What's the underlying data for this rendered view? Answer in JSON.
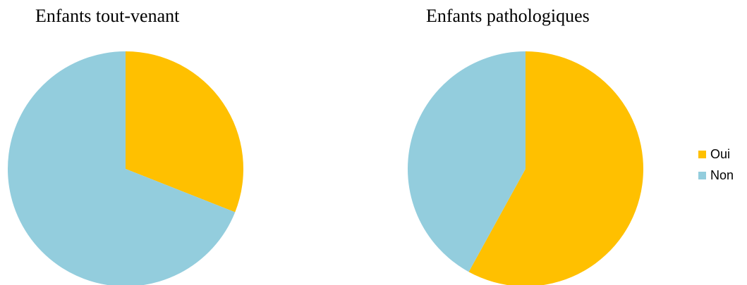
{
  "chart_data": [
    {
      "type": "pie",
      "title": "Enfants tout-venant",
      "categories": [
        "Oui",
        "Non"
      ],
      "values": [
        31,
        69
      ],
      "colors": [
        "#ffc000",
        "#93cddd"
      ]
    },
    {
      "type": "pie",
      "title": "Enfants pathologiques",
      "categories": [
        "Oui",
        "Non"
      ],
      "values": [
        58,
        42
      ],
      "colors": [
        "#ffc000",
        "#93cddd"
      ]
    }
  ],
  "legend": {
    "placement": "right",
    "items": [
      {
        "label": "Oui",
        "color": "#ffc000"
      },
      {
        "label": "Non",
        "color": "#93cddd"
      }
    ]
  }
}
